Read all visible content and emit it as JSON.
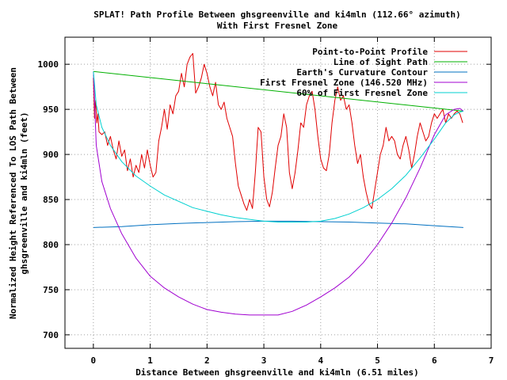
{
  "chart_data": {
    "type": "line",
    "title": "SPLAT! Path Profile Between ghsgreenville and ki4mln (112.66° azimuth)",
    "subtitle": "With First Fresnel Zone",
    "xlabel": "Distance Between ghsgreenville and ki4mln (6.51 miles)",
    "ylabel_line1": "Normalized Height Referenced To LOS Path Between",
    "ylabel_line2": "ghsgreenville and ki4mln (feet)",
    "xlim": [
      -0.5,
      7
    ],
    "ylim": [
      685,
      1030
    ],
    "x_ticks": [
      0,
      1,
      2,
      3,
      4,
      5,
      6,
      7
    ],
    "y_ticks": [
      700,
      750,
      800,
      850,
      900,
      950,
      1000
    ],
    "grid": true,
    "legend_position": "top-right",
    "colors": {
      "profile": "#e00000",
      "los": "#00b000",
      "curvature": "#0070c0",
      "fresnel": "#a000d0",
      "fresnel60": "#00d0d0"
    },
    "series": [
      {
        "name": "Point-to-Point Profile",
        "x": [
          0,
          0.02,
          0.04,
          0.06,
          0.08,
          0.1,
          0.15,
          0.2,
          0.25,
          0.3,
          0.35,
          0.4,
          0.45,
          0.5,
          0.55,
          0.6,
          0.65,
          0.7,
          0.75,
          0.8,
          0.85,
          0.9,
          0.95,
          1.0,
          1.05,
          1.1,
          1.15,
          1.2,
          1.25,
          1.3,
          1.35,
          1.4,
          1.45,
          1.5,
          1.55,
          1.6,
          1.65,
          1.7,
          1.75,
          1.8,
          1.85,
          1.9,
          1.95,
          2.0,
          2.05,
          2.1,
          2.15,
          2.2,
          2.25,
          2.3,
          2.35,
          2.4,
          2.45,
          2.5,
          2.55,
          2.6,
          2.65,
          2.7,
          2.75,
          2.8,
          2.85,
          2.9,
          2.95,
          3.0,
          3.05,
          3.1,
          3.15,
          3.2,
          3.25,
          3.3,
          3.35,
          3.4,
          3.45,
          3.5,
          3.55,
          3.6,
          3.65,
          3.7,
          3.75,
          3.8,
          3.85,
          3.9,
          3.95,
          4.0,
          4.05,
          4.1,
          4.15,
          4.2,
          4.25,
          4.3,
          4.35,
          4.4,
          4.45,
          4.5,
          4.55,
          4.6,
          4.65,
          4.7,
          4.75,
          4.8,
          4.85,
          4.9,
          4.95,
          5.0,
          5.05,
          5.1,
          5.15,
          5.2,
          5.25,
          5.3,
          5.35,
          5.4,
          5.45,
          5.5,
          5.55,
          5.6,
          5.65,
          5.7,
          5.75,
          5.8,
          5.85,
          5.9,
          5.95,
          6.0,
          6.05,
          6.1,
          6.15,
          6.2,
          6.25,
          6.3,
          6.35,
          6.4,
          6.45,
          6.5
        ],
        "y": [
          985,
          940,
          960,
          935,
          945,
          925,
          922,
          925,
          910,
          920,
          905,
          895,
          915,
          898,
          905,
          882,
          895,
          875,
          888,
          880,
          900,
          885,
          905,
          888,
          875,
          880,
          915,
          930,
          950,
          928,
          955,
          945,
          965,
          970,
          990,
          975,
          1000,
          1008,
          1012,
          968,
          975,
          985,
          1000,
          990,
          975,
          965,
          980,
          955,
          950,
          958,
          940,
          930,
          920,
          890,
          865,
          855,
          845,
          838,
          850,
          840,
          880,
          930,
          925,
          875,
          850,
          842,
          858,
          885,
          910,
          920,
          945,
          930,
          880,
          862,
          880,
          905,
          935,
          930,
          955,
          965,
          970,
          950,
          920,
          895,
          885,
          882,
          900,
          935,
          960,
          975,
          960,
          965,
          950,
          955,
          935,
          910,
          890,
          900,
          875,
          858,
          845,
          840,
          860,
          880,
          900,
          910,
          930,
          915,
          920,
          915,
          900,
          895,
          910,
          920,
          905,
          885,
          900,
          920,
          935,
          925,
          915,
          920,
          935,
          945,
          940,
          945,
          950,
          935,
          945,
          940,
          945,
          948,
          945,
          935
        ]
      },
      {
        "name": "Line of Sight Path",
        "x": [
          0,
          6.51
        ],
        "y": [
          992,
          948
        ]
      },
      {
        "name": "Earth's Curvature Contour",
        "x": [
          0,
          0.5,
          1,
          1.5,
          2,
          2.5,
          3,
          3.5,
          4,
          4.5,
          5,
          5.5,
          6,
          6.51
        ],
        "y": [
          819,
          820,
          822,
          823.5,
          824.5,
          825.5,
          826,
          826,
          825.5,
          825,
          824,
          823,
          821,
          819
        ]
      },
      {
        "name": "First Fresnel Zone (146.520 MHz)",
        "x": [
          0,
          0.05,
          0.15,
          0.3,
          0.5,
          0.75,
          1,
          1.25,
          1.5,
          1.75,
          2,
          2.25,
          2.5,
          2.75,
          3,
          3.25,
          3.5,
          3.75,
          4,
          4.25,
          4.5,
          4.75,
          5,
          5.25,
          5.5,
          5.75,
          6,
          6.2,
          6.35,
          6.45,
          6.51
        ],
        "y": [
          992,
          910,
          870,
          840,
          812,
          785,
          765,
          752,
          742,
          734,
          728,
          725,
          723,
          722,
          722,
          722,
          726,
          733,
          742,
          752,
          764,
          780,
          800,
          824,
          852,
          885,
          922,
          944,
          950,
          951,
          948
        ]
      },
      {
        "name": "60% of First Fresnel Zone",
        "x": [
          0,
          0.05,
          0.15,
          0.3,
          0.5,
          0.75,
          1,
          1.25,
          1.5,
          1.75,
          2,
          2.25,
          2.5,
          2.75,
          3,
          3.25,
          3.5,
          3.75,
          4,
          4.25,
          4.5,
          4.75,
          5,
          5.25,
          5.5,
          5.75,
          6,
          6.2,
          6.35,
          6.45,
          6.51
        ],
        "y": [
          992,
          955,
          930,
          910,
          892,
          876,
          865,
          855,
          848,
          841,
          837,
          833,
          830,
          828,
          826,
          825,
          825,
          825,
          826,
          829,
          834,
          841,
          850,
          862,
          877,
          896,
          917,
          935,
          944,
          947,
          948
        ]
      }
    ]
  }
}
